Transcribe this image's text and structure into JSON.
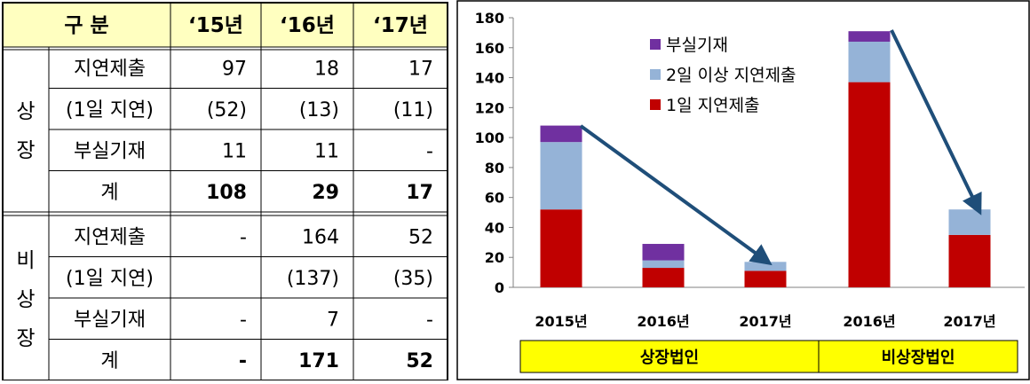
{
  "table": {
    "header": [
      "구 분",
      "‘15년",
      "‘16년",
      "‘17년"
    ],
    "groups": [
      {
        "label": [
          "상",
          "장"
        ],
        "rows": [
          {
            "label": "지연제출",
            "values": [
              "97",
              "18",
              "17"
            ],
            "bold": false
          },
          {
            "label": "(1일 지연)",
            "values": [
              "(52)",
              "(13)",
              "(11)"
            ],
            "bold": false
          },
          {
            "label": "부실기재",
            "values": [
              "11",
              "11",
              "-"
            ],
            "bold": false
          },
          {
            "label": "계",
            "values": [
              "108",
              "29",
              "17"
            ],
            "bold": true
          }
        ]
      },
      {
        "label": [
          "비",
          "상",
          "장"
        ],
        "rows": [
          {
            "label": "지연제출",
            "values": [
              "-",
              "164",
              "52"
            ],
            "bold": false
          },
          {
            "label": "(1일 지연)",
            "values": [
              "",
              "(137)",
              "(35)"
            ],
            "bold": false
          },
          {
            "label": "부실기재",
            "values": [
              "-",
              "7",
              "-"
            ],
            "bold": false
          },
          {
            "label": "계",
            "values": [
              "-",
              "171",
              "52"
            ],
            "bold": true
          }
        ]
      }
    ],
    "header_color": "#ffffc0"
  },
  "chart_data": {
    "type": "bar",
    "stacked": true,
    "categories": [
      "2015년",
      "2016년",
      "2017년",
      "2016년",
      "2017년"
    ],
    "groups": [
      {
        "label": "상장법인",
        "categories": [
          0,
          1,
          2
        ]
      },
      {
        "label": "비상장법인",
        "categories": [
          3,
          4
        ]
      }
    ],
    "series": [
      {
        "name": "1일 지연제출",
        "color": "#c00000",
        "values": [
          52,
          13,
          11,
          137,
          35
        ]
      },
      {
        "name": "2일 이상 지연제출",
        "color": "#95b3d7",
        "values": [
          45,
          5,
          6,
          27,
          17
        ]
      },
      {
        "name": "부실기재",
        "color": "#7030a0",
        "values": [
          11,
          11,
          0,
          7,
          0
        ]
      }
    ],
    "ylim": [
      0,
      180
    ],
    "yticks": [
      0,
      20,
      40,
      60,
      80,
      100,
      120,
      140,
      160,
      180
    ],
    "legend_position": "top-left",
    "arrows": [
      {
        "from": 0,
        "to": 2
      },
      {
        "from": 3,
        "to": 4
      }
    ],
    "arrow_color": "#1f4e79",
    "group_bar_color": "#ffff00"
  }
}
